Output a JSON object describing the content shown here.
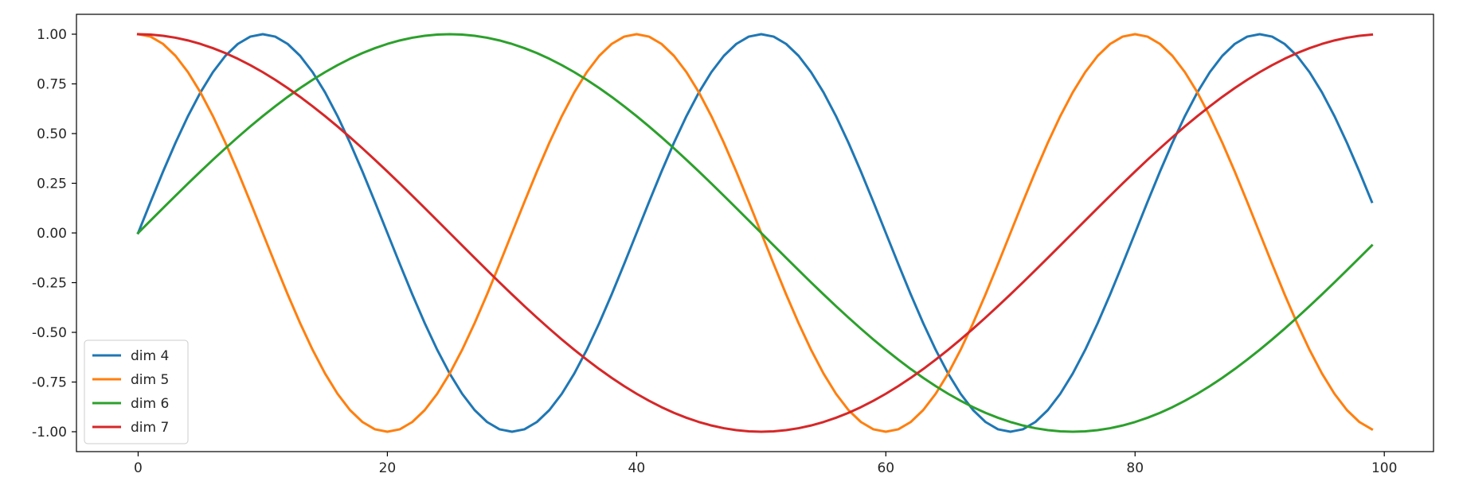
{
  "chart_data": {
    "type": "line",
    "title": "",
    "xlabel": "",
    "ylabel": "",
    "xlim": [
      -4.95,
      103.95
    ],
    "ylim": [
      -1.1,
      1.1
    ],
    "xticks": [
      0,
      20,
      40,
      60,
      80,
      100
    ],
    "yticks": [
      1.0,
      0.75,
      0.5,
      0.25,
      0.0,
      -0.25,
      -0.5,
      -0.75,
      -1.0
    ],
    "grid": false,
    "legend_position": "lower-left",
    "x_range": [
      0,
      99
    ],
    "series": [
      {
        "name": "dim 4",
        "color": "#1f77b4",
        "fn": "sin",
        "period": 40,
        "amplitude": 1
      },
      {
        "name": "dim 5",
        "color": "#ff7f0e",
        "fn": "cos",
        "period": 40,
        "amplitude": 1
      },
      {
        "name": "dim 6",
        "color": "#2ca02c",
        "fn": "sin",
        "period": 100,
        "amplitude": 1
      },
      {
        "name": "dim 7",
        "color": "#d62728",
        "fn": "cos",
        "period": 100,
        "amplitude": 1
      }
    ]
  }
}
